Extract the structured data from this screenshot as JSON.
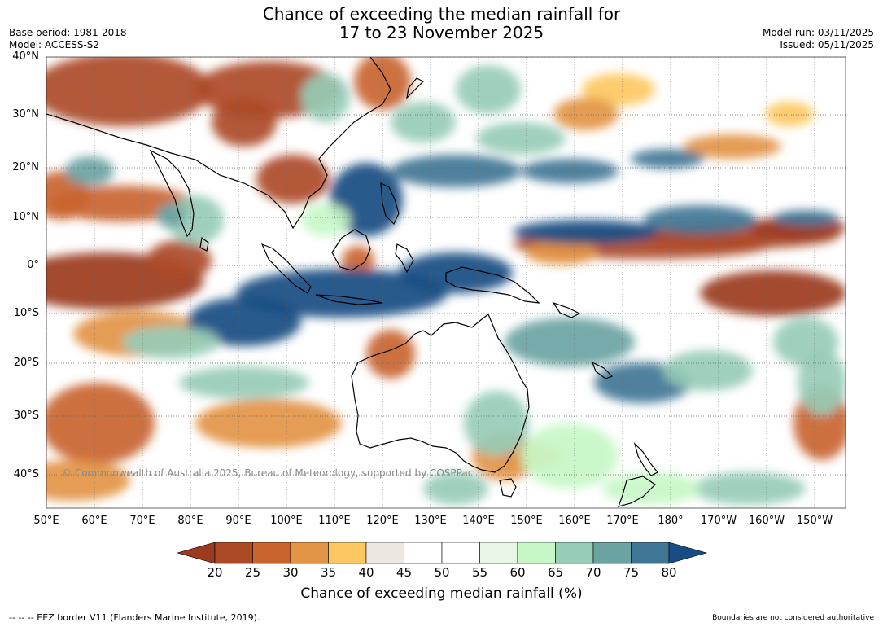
{
  "header": {
    "title_line1": "Chance of exceeding the median rainfall for",
    "title_line2": "17 to 23 November 2025",
    "base_period": "Base period: 1981-2018",
    "model": "Model: ACCESS-S2",
    "model_run": "Model run: 03/11/2025",
    "issued": "Issued: 05/11/2025"
  },
  "map": {
    "copyright": "© Commonwealth of Australia 2025, Bureau of Meteorology, supported by COSPPac",
    "lat_labels": [
      "40°N",
      "30°N",
      "20°N",
      "10°N",
      "0°",
      "10°S",
      "20°S",
      "30°S",
      "40°S"
    ],
    "lon_labels": [
      "50°E",
      "60°E",
      "70°E",
      "80°E",
      "90°E",
      "100°E",
      "110°E",
      "120°E",
      "130°E",
      "140°E",
      "150°E",
      "160°E",
      "170°E",
      "180°",
      "170°W",
      "160°W",
      "150°W"
    ]
  },
  "colorbar": {
    "title": "Chance of exceeding median rainfall (%)",
    "ticks": [
      "20",
      "25",
      "30",
      "35",
      "40",
      "45",
      "50",
      "55",
      "60",
      "65",
      "70",
      "75",
      "80"
    ],
    "colors": [
      "#9b3a1f",
      "#ad4a26",
      "#c9642f",
      "#e39445",
      "#fdc862",
      "#ece8e1",
      "#ffffff",
      "#ffffff",
      "#e8f6e6",
      "#c7f7c7",
      "#97ccb7",
      "#6ba3a3",
      "#3f7696",
      "#174d82"
    ]
  },
  "footer": {
    "legend": "--  --  -- EEZ border V11 (Flanders Marine Institute, 2019).",
    "disclaimer": "Boundaries are not considered authoritative"
  }
}
